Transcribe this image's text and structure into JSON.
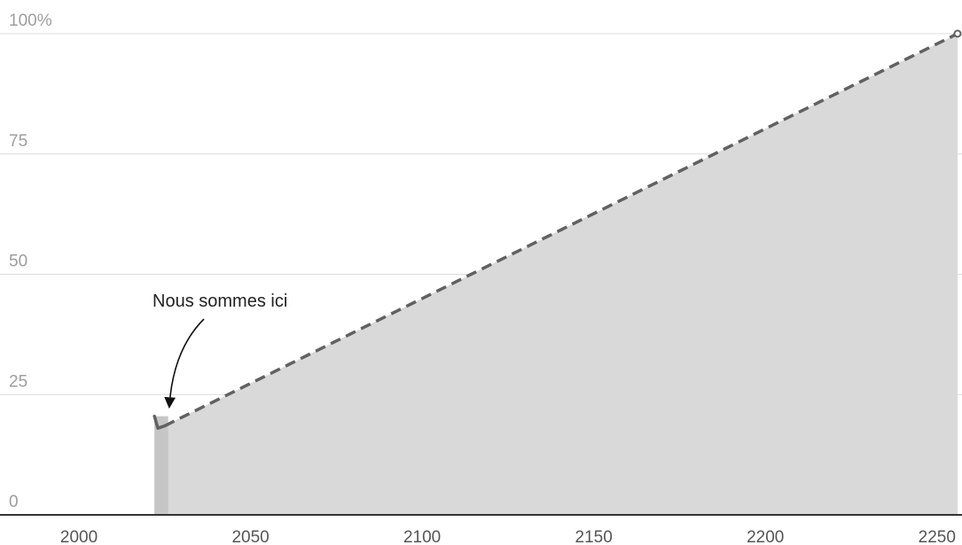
{
  "chart_data": {
    "type": "area",
    "title": "",
    "xlabel": "",
    "ylabel": "",
    "xlim": [
      1977,
      2256
    ],
    "ylim": [
      0,
      100
    ],
    "y_ticks": [
      {
        "value": 0,
        "label": "0"
      },
      {
        "value": 25,
        "label": "25"
      },
      {
        "value": 50,
        "label": "50"
      },
      {
        "value": 75,
        "label": "75"
      },
      {
        "value": 100,
        "label": "100%"
      }
    ],
    "x_ticks": [
      {
        "value": 2000,
        "label": "2000"
      },
      {
        "value": 2050,
        "label": "2050"
      },
      {
        "value": 2100,
        "label": "2100"
      },
      {
        "value": 2150,
        "label": "2150"
      },
      {
        "value": 2200,
        "label": "2200"
      },
      {
        "value": 2250,
        "label": "2250"
      }
    ],
    "grid": true,
    "series": [
      {
        "style": "solid",
        "x": [
          2022,
          2023,
          2025
        ],
        "y": [
          20.5,
          18,
          18.5
        ]
      },
      {
        "style": "dashed",
        "x": [
          2025,
          2256
        ],
        "y": [
          18.5,
          100
        ]
      }
    ],
    "highlight_band": {
      "x": [
        2022,
        2026
      ]
    },
    "annotation": {
      "text": "Nous sommes ici",
      "x": 2025,
      "y": 18.5
    },
    "colors": {
      "area_fill": "#d9d9d9",
      "band_fill": "#c6c6c6",
      "line": "#616161",
      "grid": "#dcdcdc",
      "axis": "#333333",
      "y_tick_text": "#9e9e9e",
      "x_tick_text": "#555555",
      "annotation_text": "#222222"
    }
  }
}
